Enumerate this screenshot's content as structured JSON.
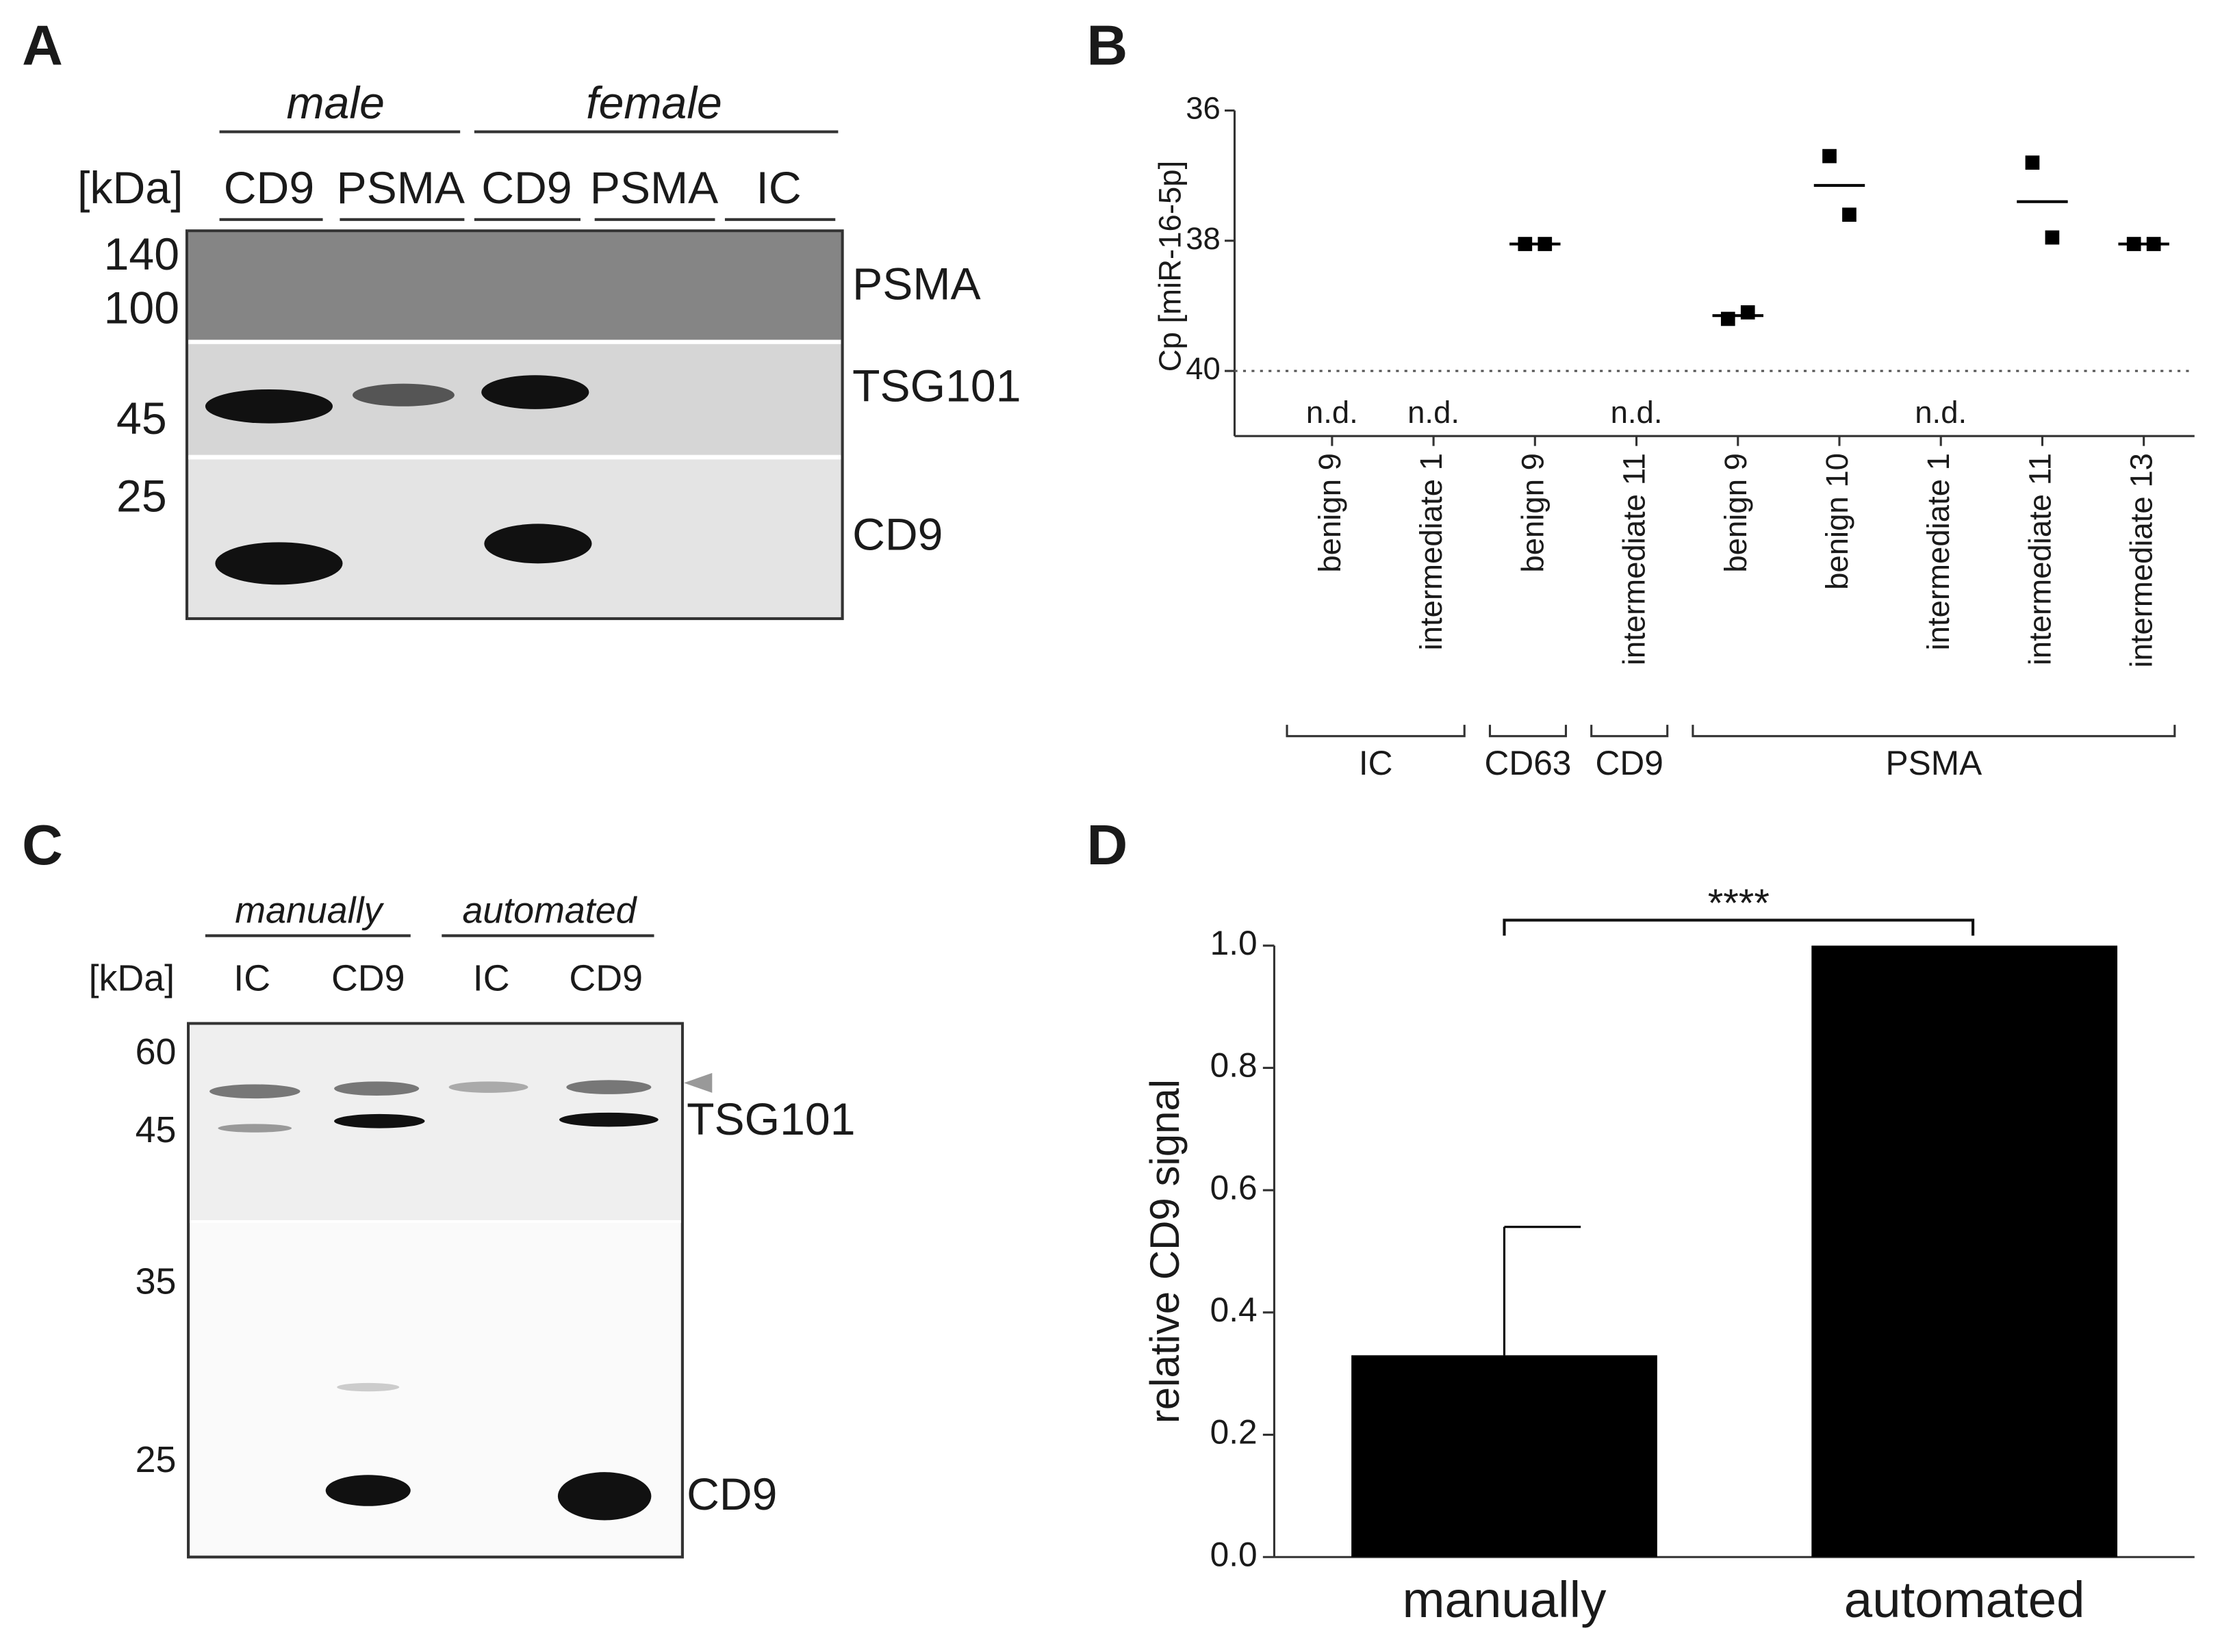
{
  "panel_labels": [
    "A",
    "B",
    "C",
    "D"
  ],
  "blot_a": {
    "groups": [
      "male",
      "female"
    ],
    "unit": "[kDa]",
    "lanes": [
      "CD9",
      "PSMA",
      "CD9",
      "PSMA",
      "IC"
    ],
    "markers": [
      "140",
      "100",
      "45",
      "25"
    ],
    "bands": [
      "PSMA",
      "TSG101",
      "CD9"
    ]
  },
  "blot_c": {
    "groups": [
      "manually",
      "automated"
    ],
    "unit": "[kDa]",
    "lanes": [
      "IC",
      "CD9",
      "IC",
      "CD9"
    ],
    "markers": [
      "60",
      "45",
      "35",
      "25"
    ],
    "bands": [
      "TSG101",
      "CD9"
    ]
  },
  "chart_data": [
    {
      "type": "dot",
      "y_label": "Cp [miR-16-5p]",
      "categories": [
        "benign 9",
        "intermediate 1",
        "benign 9",
        "intermediate 11",
        "benign 9",
        "benign 10",
        "intermediate 1",
        "intermediate 11",
        "intermediate 13"
      ],
      "replicates": [
        [
          null,
          null
        ],
        [
          null,
          null
        ],
        [
          38.05,
          38.05
        ],
        [
          null,
          null
        ],
        [
          39.2,
          39.1
        ],
        [
          36.7,
          37.6
        ],
        [
          null,
          null
        ],
        [
          36.8,
          37.95
        ],
        [
          38.05,
          38.05
        ]
      ],
      "means": [
        null,
        null,
        38.05,
        null,
        39.15,
        37.15,
        null,
        37.4,
        38.05
      ],
      "value_labels": [
        "n.d.",
        "n.d.",
        null,
        "n.d.",
        null,
        null,
        "n.d.",
        null,
        null
      ],
      "groups": [
        {
          "label": "IC",
          "size": 2
        },
        {
          "label": "CD63",
          "size": 1
        },
        {
          "label": "CD9",
          "size": 1
        },
        {
          "label": "PSMA",
          "size": 5
        }
      ],
      "threshold": 40,
      "color": "#000000",
      "ylim": [
        36,
        41
      ],
      "y_reversed": true,
      "yticks": [
        36,
        38,
        40
      ]
    },
    {
      "type": "bar",
      "y_label": "relative CD9 signal",
      "categories": [
        "manually",
        "automated"
      ],
      "values": [
        0.33,
        1.0
      ],
      "errors": [
        0.21,
        null
      ],
      "color": "#000000",
      "significance": "****",
      "ylim": [
        0,
        1.0
      ],
      "yticks": [
        {
          "value": 0,
          "label": "0.0"
        },
        0.2,
        0.4,
        0.6,
        0.8,
        {
          "value": 1,
          "label": "1.0"
        }
      ]
    }
  ]
}
